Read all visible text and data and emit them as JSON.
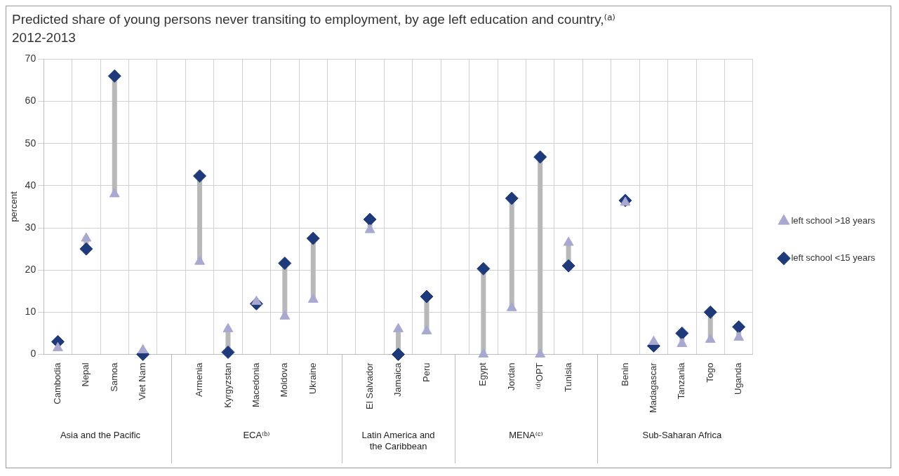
{
  "chart_data": {
    "type": "scatter",
    "title": "Predicted share of young persons never transiting to employment, by age left education and country,⁽ᵃ⁾ 2012-2013",
    "ylabel": "percent",
    "categories": [
      "Cambodia",
      "Nepal",
      "Samoa",
      "Viet Nam",
      null,
      "Armenia",
      "Kyrgyzstan",
      "Macedonia",
      "Moldova",
      "Ukraine",
      null,
      "El Salvador",
      "Jamaica",
      "Peru",
      null,
      "Egypt",
      "Jordan",
      "⁽ᵈ⁾OPT",
      "Tunisia",
      null,
      "Benin",
      "Madagascar",
      "Tanzania",
      "Togo",
      "Uganda"
    ],
    "series": [
      {
        "name": "left school <15 years",
        "color": "#1f3a7a",
        "marker": "diamond",
        "values": [
          3,
          25,
          66,
          0,
          null,
          42.3,
          0.5,
          12,
          21.6,
          27.5,
          null,
          32,
          0,
          13.7,
          null,
          20.3,
          37,
          46.8,
          21,
          null,
          36.5,
          2,
          5,
          10,
          6.5
        ]
      },
      {
        "name": "left school >18 years",
        "color": "#a9a8d0",
        "marker": "triangle",
        "values": [
          1.5,
          27.5,
          38,
          1,
          null,
          22,
          6,
          12.5,
          9,
          13,
          null,
          29.5,
          6,
          5.5,
          null,
          0,
          11,
          0,
          26.5,
          null,
          36,
          3,
          2.5,
          3.5,
          4
        ]
      }
    ],
    "annotations": [
      "Asia and the Pacific",
      "ECA⁽ᵇ⁾",
      "Latin America and the Caribbean",
      "MENA⁽ᶜ⁾",
      "Sub-Saharan Africa"
    ],
    "ylim": [
      0,
      70
    ],
    "yticks": [
      0,
      10,
      20,
      30,
      40,
      50,
      60,
      70
    ],
    "grid": true,
    "legend": "right"
  }
}
